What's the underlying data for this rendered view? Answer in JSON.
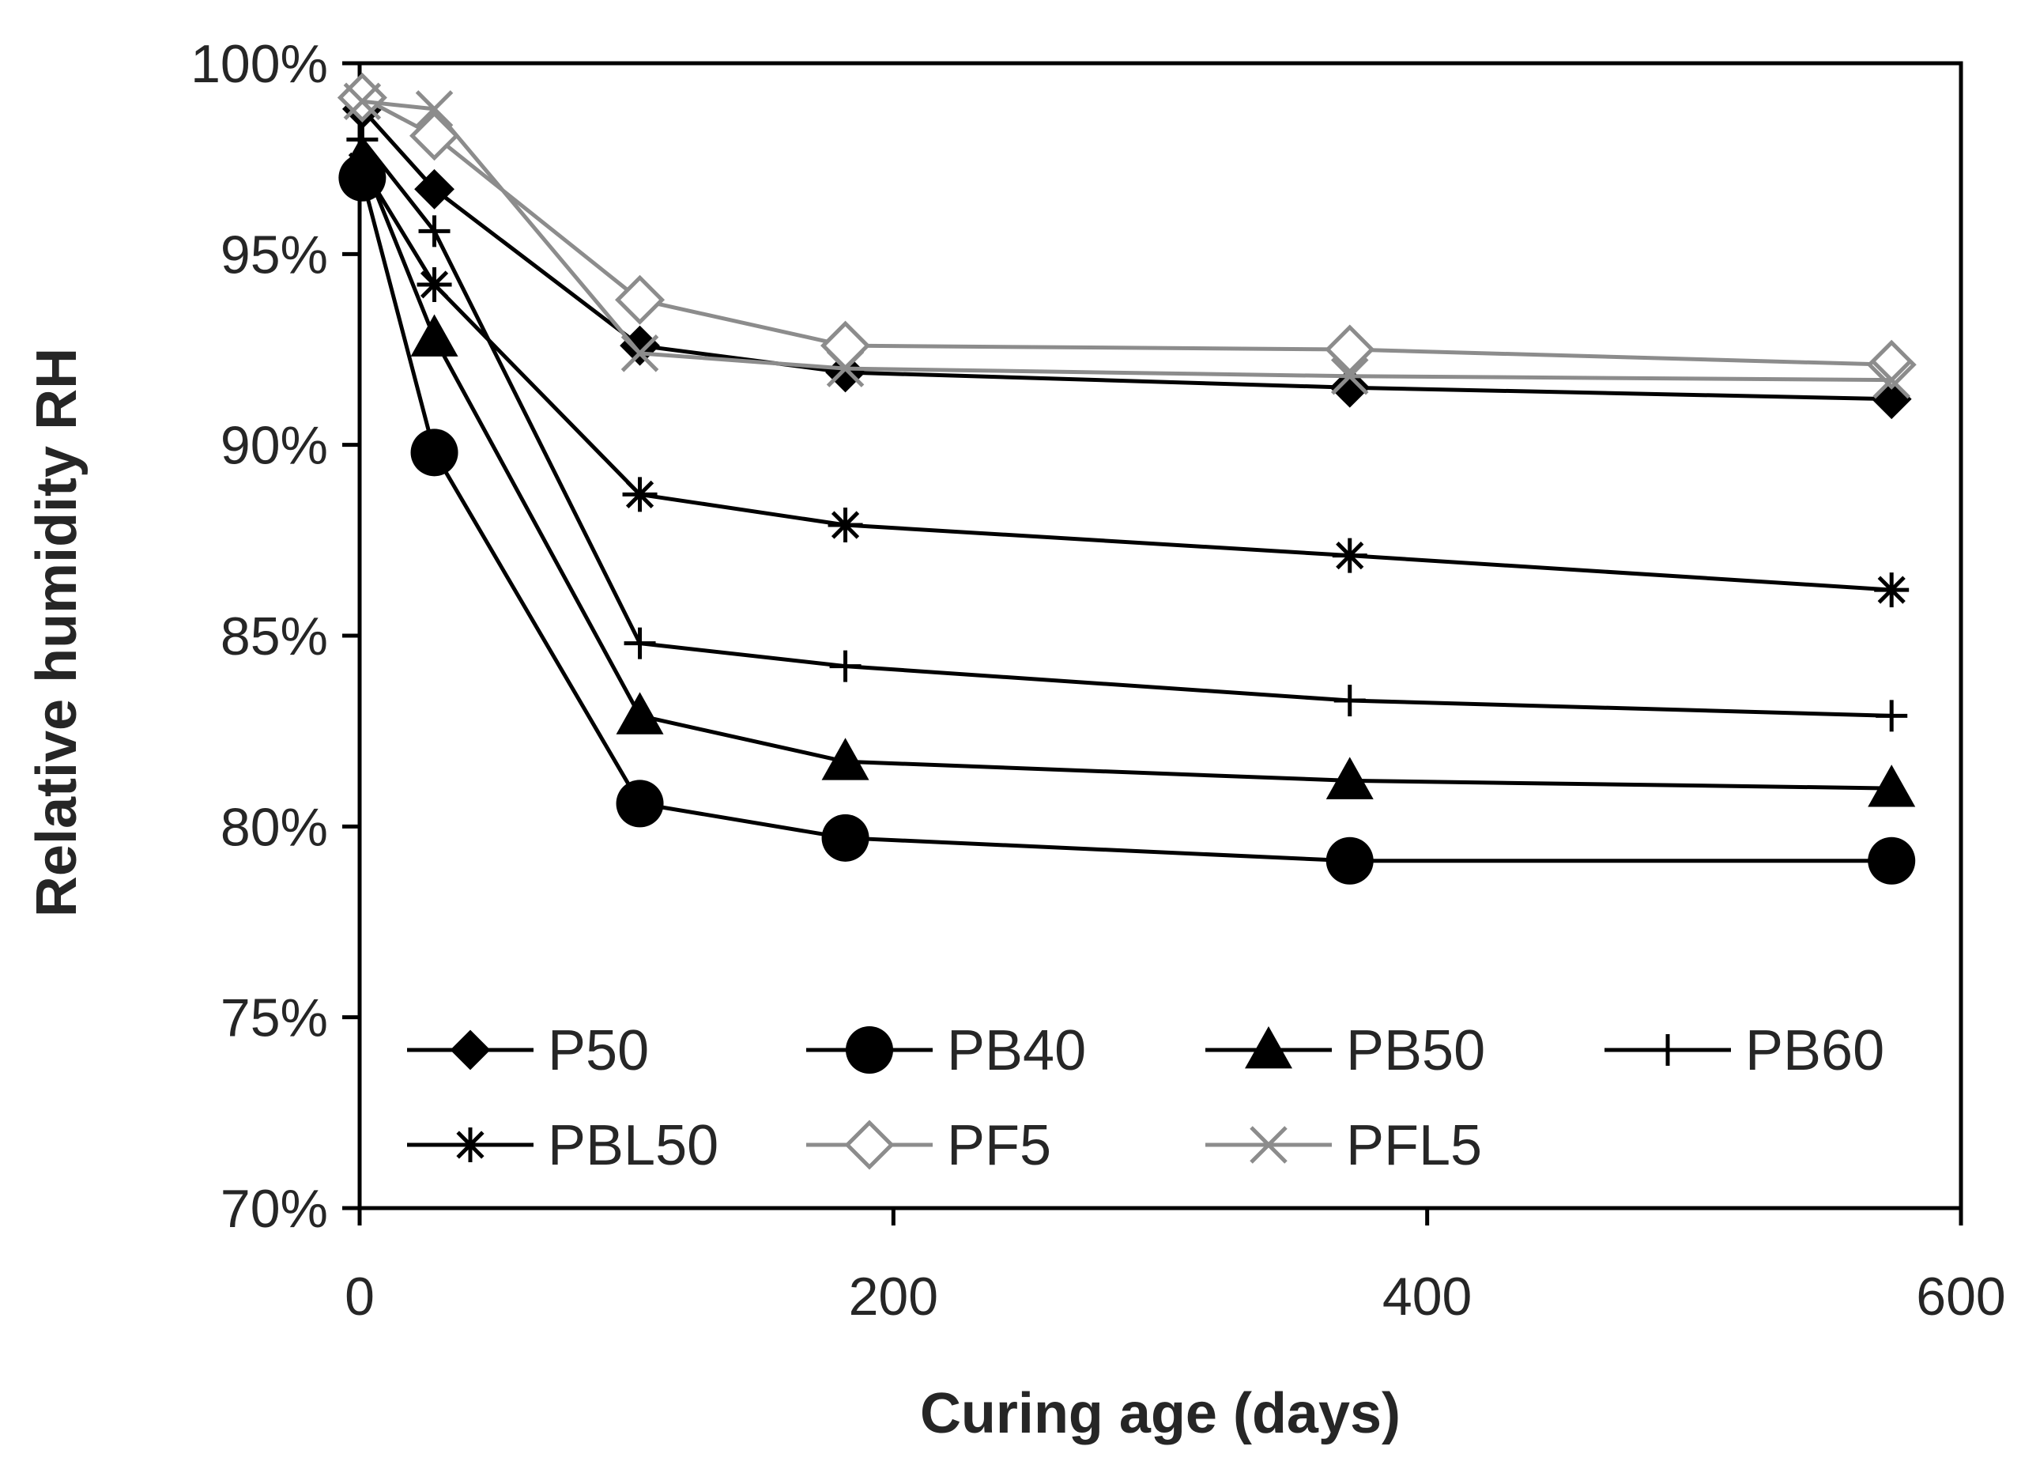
{
  "chart_data": {
    "type": "line",
    "title": "",
    "xlabel": "Curing age (days)",
    "ylabel": "Relative humidity RH",
    "xlim": [
      0,
      600
    ],
    "ylim": [
      70,
      100
    ],
    "xticks": [
      0,
      200,
      400,
      600
    ],
    "xtick_labels": [
      "0",
      "200",
      "400",
      "600"
    ],
    "yticks": [
      70,
      75,
      80,
      85,
      90,
      95,
      100
    ],
    "ytick_labels": [
      "70%",
      "75%",
      "80%",
      "85%",
      "90%",
      "95%",
      "100%"
    ],
    "grid": false,
    "legend_position": "bottom-inside",
    "series": [
      {
        "name": "P50",
        "marker": "diamond-filled",
        "color": "#000000",
        "x": [
          1,
          28,
          105,
          182,
          371,
          574
        ],
        "values": [
          98.8,
          96.7,
          92.6,
          91.9,
          91.5,
          91.2
        ]
      },
      {
        "name": "PB40",
        "marker": "circle-filled",
        "color": "#000000",
        "x": [
          1,
          28,
          105,
          182,
          371,
          574
        ],
        "values": [
          97.0,
          89.8,
          80.6,
          79.7,
          79.1,
          79.1
        ]
      },
      {
        "name": "PB50",
        "marker": "triangle-filled",
        "color": "#000000",
        "x": [
          1,
          28,
          105,
          182,
          371,
          574
        ],
        "values": [
          97.5,
          92.8,
          82.9,
          81.7,
          81.2,
          81.0
        ]
      },
      {
        "name": "PB60",
        "marker": "plus",
        "color": "#000000",
        "x": [
          1,
          28,
          105,
          182,
          371,
          574
        ],
        "values": [
          98.0,
          95.6,
          84.8,
          84.2,
          83.3,
          82.9
        ]
      },
      {
        "name": "PBL50",
        "marker": "asterisk",
        "color": "#000000",
        "x": [
          1,
          28,
          105,
          182,
          371,
          574
        ],
        "values": [
          97.3,
          94.2,
          88.7,
          87.9,
          87.1,
          86.2
        ]
      },
      {
        "name": "PF5",
        "marker": "diamond-open",
        "color": "#8c8c8c",
        "x": [
          1,
          28,
          105,
          182,
          371,
          574
        ],
        "values": [
          99.1,
          98.1,
          93.8,
          92.6,
          92.5,
          92.1
        ]
      },
      {
        "name": "PFL5",
        "marker": "x",
        "color": "#8c8c8c",
        "x": [
          1,
          28,
          105,
          182,
          371,
          574
        ],
        "values": [
          99.0,
          98.8,
          92.4,
          92.0,
          91.8,
          91.7
        ]
      }
    ]
  }
}
